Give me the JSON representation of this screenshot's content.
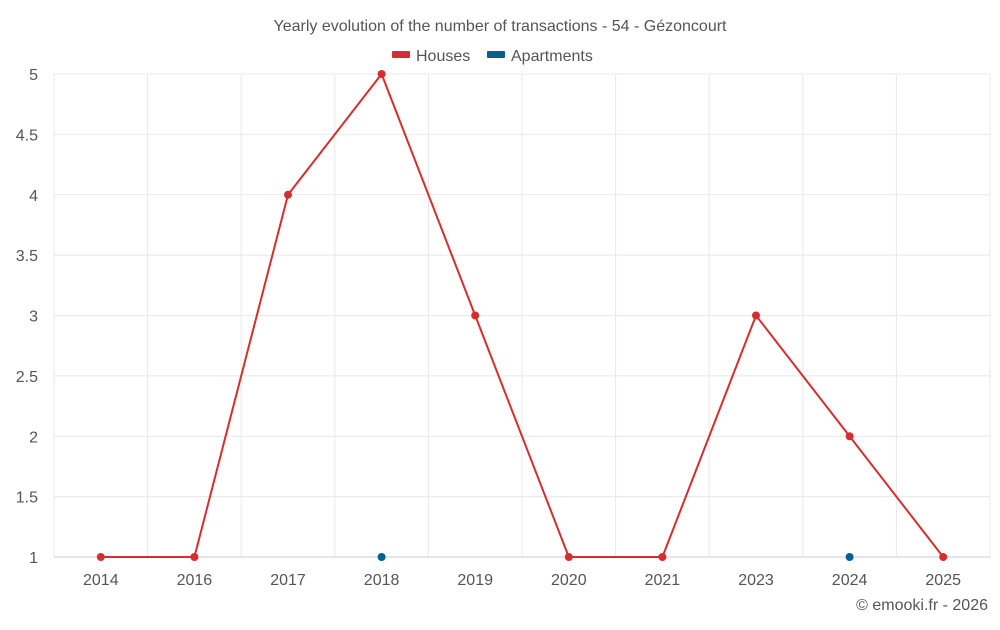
{
  "chart_data": {
    "type": "line",
    "title": "Yearly evolution of the number of transactions - 54 - Gézoncourt",
    "categories": [
      "2014",
      "2016",
      "2017",
      "2018",
      "2019",
      "2020",
      "2021",
      "2023",
      "2024",
      "2025"
    ],
    "series": [
      {
        "name": "Houses",
        "color": "#d32f2f",
        "values": [
          1,
          1,
          4,
          5,
          3,
          1,
          1,
          3,
          2,
          1
        ],
        "draw_line": true
      },
      {
        "name": "Apartments",
        "color": "#005f94",
        "values": [
          null,
          null,
          null,
          1,
          null,
          null,
          null,
          null,
          1,
          null
        ],
        "draw_line": false
      }
    ],
    "y_ticks": [
      "1",
      "1.5",
      "2",
      "2.5",
      "3",
      "3.5",
      "4",
      "4.5",
      "5"
    ],
    "ylim": [
      1,
      5
    ],
    "xlabel": "",
    "ylabel": "",
    "grid": true,
    "legend_position": "top-center"
  },
  "credit": "© emooki.fr - 2026"
}
